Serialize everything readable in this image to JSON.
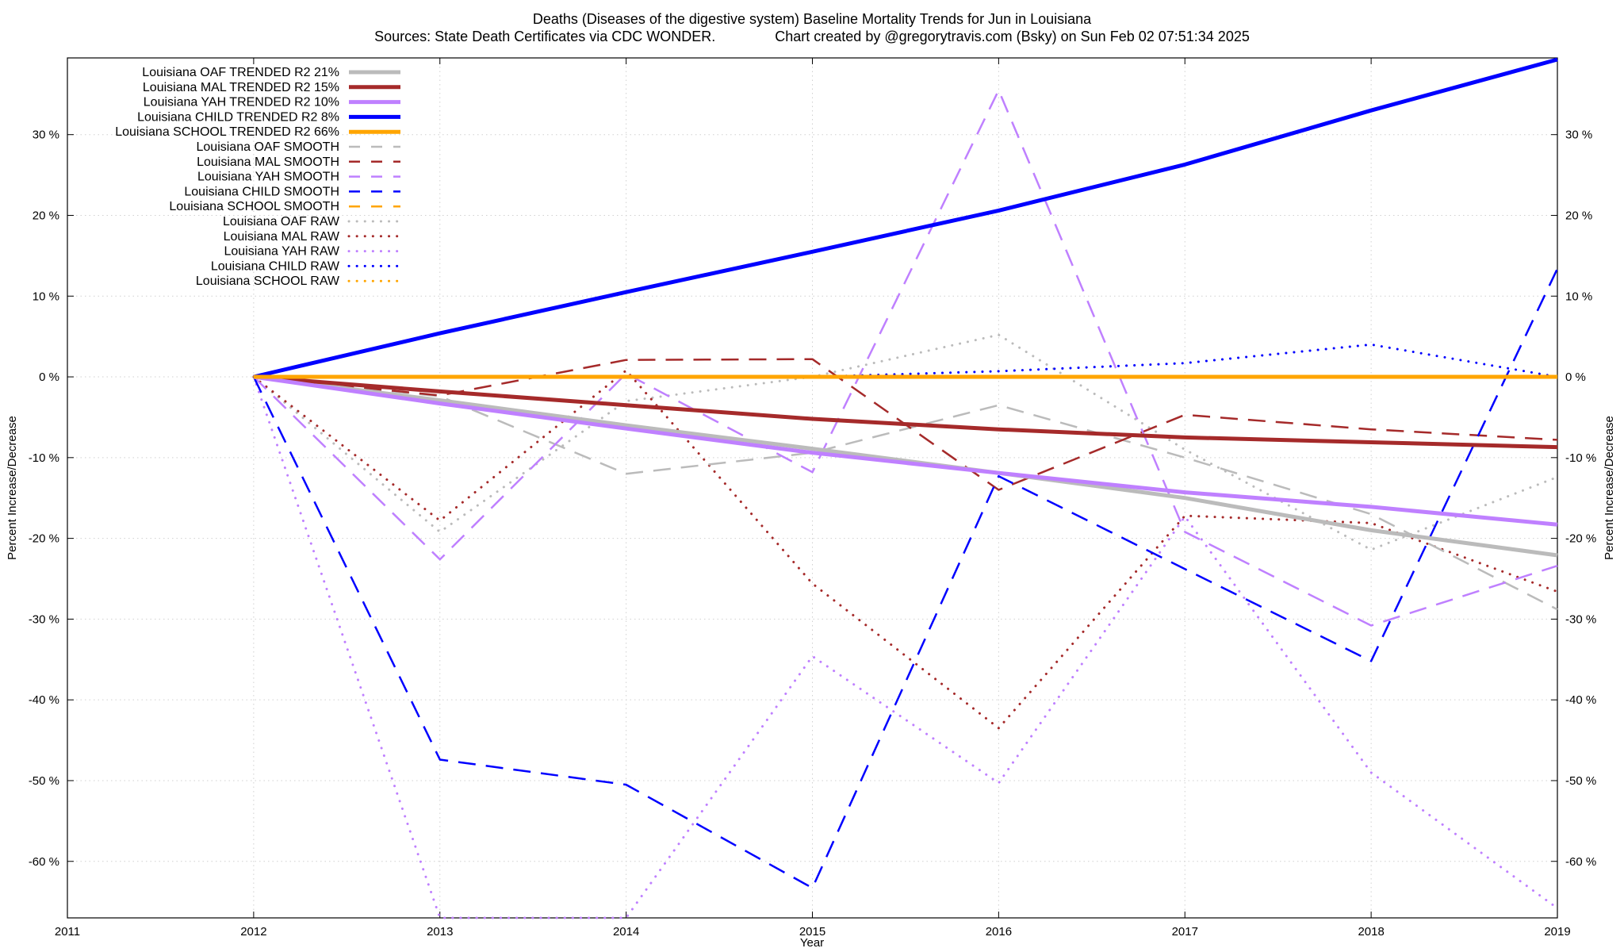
{
  "chart_data": {
    "type": "line",
    "title": "Deaths (Diseases of the digestive system)  Baseline Mortality Trends for Jun in Louisiana",
    "subtitle": "Sources: State Death Certificates via CDC WONDER.               Chart created by @gregorytravis.com (Bsky) on Sun Feb 02 07:51:34 2025",
    "xlabel": "Year",
    "ylabel": "Percent Increase/Decrease",
    "y2label": "Percent Increase/Decrease",
    "xlim": [
      2011,
      2019
    ],
    "ylim": [
      -67,
      39.5
    ],
    "x_ticks": [
      "2011",
      "2012",
      "2013",
      "2014",
      "2015",
      "2016",
      "2017",
      "2018",
      "2019"
    ],
    "y_ticks": [
      "30 %",
      "20 %",
      "10 %",
      "0 %",
      "-10 %",
      "-20 %",
      "-30 %",
      "-40 %",
      "-50 %",
      "-60 %"
    ],
    "y_tick_values": [
      30,
      20,
      10,
      0,
      -10,
      -20,
      -30,
      -40,
      -50,
      -60
    ],
    "grid": true,
    "legend_position": "top-left",
    "series": [
      {
        "name": "Louisiana OAF TRENDED R2  21%",
        "color": "#bbbbbb",
        "style": "solid",
        "x": [
          2012,
          2013,
          2014,
          2015,
          2016,
          2017,
          2018,
          2019
        ],
        "y": [
          0,
          -2.9,
          -6.0,
          -8.9,
          -11.9,
          -15.0,
          -19.0,
          -22.1
        ]
      },
      {
        "name": "Louisiana MAL TRENDED R2  15%",
        "color": "#a52a2a",
        "style": "solid",
        "x": [
          2012,
          2013,
          2014,
          2015,
          2016,
          2017,
          2018,
          2019
        ],
        "y": [
          0,
          -1.8,
          -3.5,
          -5.2,
          -6.5,
          -7.5,
          -8.1,
          -8.7
        ]
      },
      {
        "name": "Louisiana YAH TRENDED R2  10%",
        "color": "#bf80ff",
        "style": "solid",
        "x": [
          2012,
          2013,
          2014,
          2015,
          2016,
          2017,
          2018,
          2019
        ],
        "y": [
          0,
          -3.3,
          -6.4,
          -9.4,
          -11.9,
          -14.3,
          -16.1,
          -18.3
        ]
      },
      {
        "name": "Louisiana CHILD TRENDED R2  8%",
        "color": "#0000ff",
        "style": "solid",
        "x": [
          2012,
          2013,
          2014,
          2015,
          2016,
          2017,
          2018,
          2019
        ],
        "y": [
          0,
          5.4,
          10.5,
          15.5,
          20.6,
          26.3,
          33.0,
          39.3
        ]
      },
      {
        "name": "Louisiana SCHOOL TRENDED R2  66%",
        "color": "#ffa500",
        "style": "solid",
        "x": [
          2012,
          2013,
          2014,
          2015,
          2016,
          2017,
          2018,
          2019
        ],
        "y": [
          0,
          0,
          0,
          0,
          0,
          0,
          0,
          0
        ]
      },
      {
        "name": "Louisiana OAF SMOOTH",
        "color": "#bbbbbb",
        "style": "dashed",
        "x": [
          2012,
          2013,
          2014,
          2015,
          2016,
          2017,
          2018,
          2019
        ],
        "y": [
          0,
          -2.4,
          -12.0,
          -9.4,
          -3.5,
          -10.0,
          -17.0,
          -28.8
        ]
      },
      {
        "name": "Louisiana MAL SMOOTH",
        "color": "#a52a2a",
        "style": "dashed",
        "x": [
          2012,
          2013,
          2014,
          2015,
          2016,
          2017,
          2018,
          2019
        ],
        "y": [
          0,
          -2.3,
          2.1,
          2.2,
          -14.0,
          -4.7,
          -6.5,
          -7.8
        ]
      },
      {
        "name": "Louisiana YAH SMOOTH",
        "color": "#bf80ff",
        "style": "dashed",
        "x": [
          2012,
          2013,
          2014,
          2015,
          2016,
          2017,
          2018,
          2019
        ],
        "y": [
          0,
          -22.6,
          0.4,
          -11.8,
          35.5,
          -19.2,
          -30.8,
          -23.4
        ]
      },
      {
        "name": "Louisiana CHILD SMOOTH",
        "color": "#0000ff",
        "style": "dashed",
        "x": [
          2012,
          2013,
          2014,
          2015,
          2016,
          2017,
          2018,
          2019
        ],
        "y": [
          0,
          -47.4,
          -50.5,
          -63.3,
          -12.3,
          -23.8,
          -35.2,
          13.4
        ]
      },
      {
        "name": "Louisiana SCHOOL SMOOTH",
        "color": "#ffa500",
        "style": "dashed",
        "x": [
          2012,
          2013,
          2014,
          2015,
          2016,
          2017,
          2018,
          2019
        ],
        "y": [
          0,
          0,
          0,
          0,
          0,
          0,
          0,
          0
        ]
      },
      {
        "name": "Louisiana OAF RAW",
        "color": "#bbbbbb",
        "style": "dotted",
        "x": [
          2012,
          2013,
          2014,
          2015,
          2016,
          2017,
          2018,
          2019
        ],
        "y": [
          0,
          -19.2,
          -3.0,
          0,
          5.2,
          -9.0,
          -21.4,
          -12.4
        ]
      },
      {
        "name": "Louisiana MAL RAW",
        "color": "#a52a2a",
        "style": "dotted",
        "x": [
          2012,
          2013,
          2014,
          2015,
          2016,
          2017,
          2018,
          2019
        ],
        "y": [
          0,
          -17.8,
          0.8,
          -25.6,
          -43.5,
          -17.2,
          -18.1,
          -26.6
        ]
      },
      {
        "name": "Louisiana YAH RAW",
        "color": "#bf80ff",
        "style": "dotted",
        "x": [
          2012,
          2013,
          2014,
          2015,
          2016,
          2017,
          2018,
          2019
        ],
        "y": [
          0,
          -67,
          -67,
          -34.6,
          -50.3,
          -17.3,
          -49.0,
          -65.8
        ]
      },
      {
        "name": "Louisiana CHILD RAW",
        "color": "#0000ff",
        "style": "dotted",
        "x": [
          2012,
          2013,
          2014,
          2015,
          2016,
          2017,
          2018,
          2019
        ],
        "y": [
          0,
          0,
          0,
          0,
          0.7,
          1.7,
          4.0,
          0
        ]
      },
      {
        "name": "Louisiana SCHOOL RAW",
        "color": "#ffa500",
        "style": "dotted",
        "x": [
          2012,
          2013,
          2014,
          2015,
          2016,
          2017,
          2018,
          2019
        ],
        "y": [
          0,
          0,
          0,
          0,
          0,
          0,
          0,
          0
        ]
      }
    ]
  }
}
